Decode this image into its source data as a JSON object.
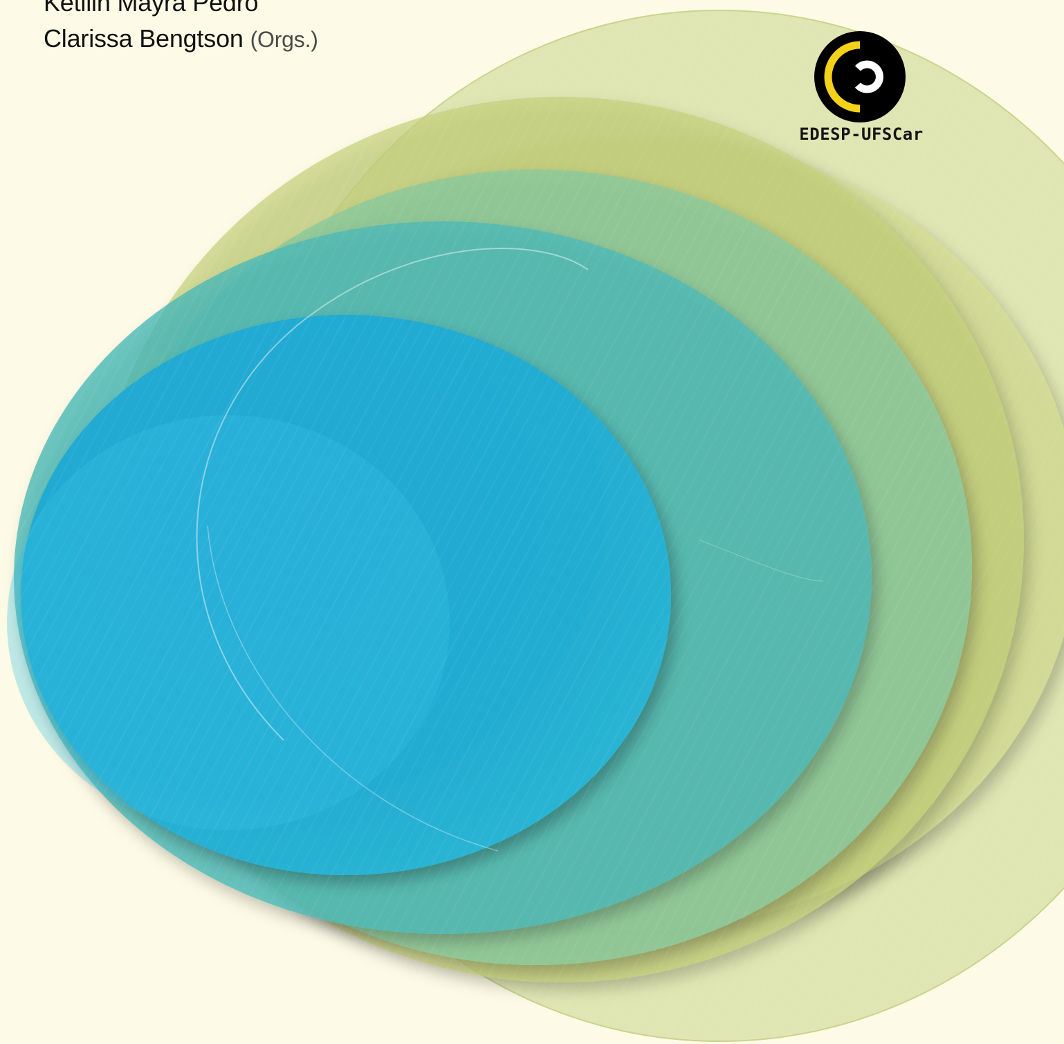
{
  "cover": {
    "authors": [
      "Ketilin Mayra Pedro",
      "Clarissa Bengtson"
    ],
    "organizer_suffix": "(Orgs.)",
    "publisher": "EDESP-UFSCar"
  },
  "colors": {
    "background": "#fdfbe6",
    "outer_green": "#dfe6b3",
    "mid_green": "#c2cf7a",
    "sea_green": "#8cc79c",
    "teal": "#53bdbb",
    "blue": "#25afd5",
    "logo_black": "#000000",
    "logo_yellow": "#f4d21a",
    "logo_white": "#ffffff"
  },
  "icons": {
    "publisher_logo": "edesp-ufscar-logo-icon"
  }
}
